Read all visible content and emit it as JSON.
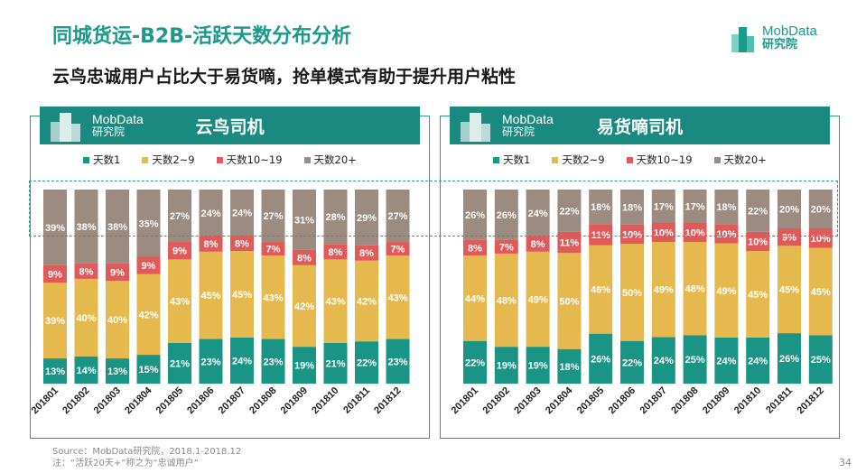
{
  "title": "同城货运-B2B-活跃天数分布分析",
  "subtitle": "云鸟忠诚用户占比大于易货嘀，抢单模式有助于提升用户粘性",
  "brand": {
    "en": "MobData",
    "cn": "研究院"
  },
  "source": "Source：MobData研究院，2018.1-2018.12",
  "note": "注：“活跃20天+”称之为“忠诚用户”",
  "page_number": "34",
  "colors": {
    "teal": "#1a9484",
    "yellow": "#e6b94f",
    "red": "#e05a5a",
    "gray": "#9c8b80",
    "brand": "#1a9a8a"
  },
  "chart_data": [
    {
      "type": "bar",
      "stacked": "percent",
      "title": "云鸟司机",
      "categories": [
        "201801",
        "201802",
        "201803",
        "201804",
        "201805",
        "201806",
        "201807",
        "201808",
        "201809",
        "201810",
        "201811",
        "201812"
      ],
      "series": [
        {
          "name": "天数1",
          "values": [
            13,
            14,
            13,
            15,
            21,
            23,
            24,
            23,
            19,
            21,
            22,
            23
          ]
        },
        {
          "name": "天数2~9",
          "values": [
            39,
            40,
            40,
            42,
            43,
            45,
            45,
            43,
            42,
            43,
            42,
            43
          ]
        },
        {
          "name": "天数10~19",
          "values": [
            9,
            8,
            9,
            9,
            9,
            8,
            8,
            7,
            8,
            8,
            8,
            7
          ]
        },
        {
          "name": "天数20+",
          "values": [
            39,
            38,
            38,
            35,
            27,
            24,
            24,
            27,
            31,
            28,
            29,
            27
          ]
        }
      ]
    },
    {
      "type": "bar",
      "stacked": "percent",
      "title": "易货嘀司机",
      "categories": [
        "201801",
        "201802",
        "201803",
        "201804",
        "201805",
        "201806",
        "201807",
        "201808",
        "201809",
        "201810",
        "201811",
        "201812"
      ],
      "series": [
        {
          "name": "天数1",
          "values": [
            22,
            19,
            19,
            18,
            26,
            22,
            24,
            25,
            24,
            24,
            26,
            25
          ]
        },
        {
          "name": "天数2~9",
          "values": [
            44,
            48,
            49,
            50,
            46,
            50,
            49,
            48,
            49,
            45,
            45,
            45
          ]
        },
        {
          "name": "天数10~19",
          "values": [
            8,
            7,
            8,
            11,
            11,
            10,
            10,
            10,
            10,
            10,
            9,
            10
          ]
        },
        {
          "name": "天数20+",
          "values": [
            26,
            26,
            24,
            22,
            18,
            18,
            17,
            17,
            18,
            22,
            20,
            20
          ]
        }
      ]
    }
  ]
}
